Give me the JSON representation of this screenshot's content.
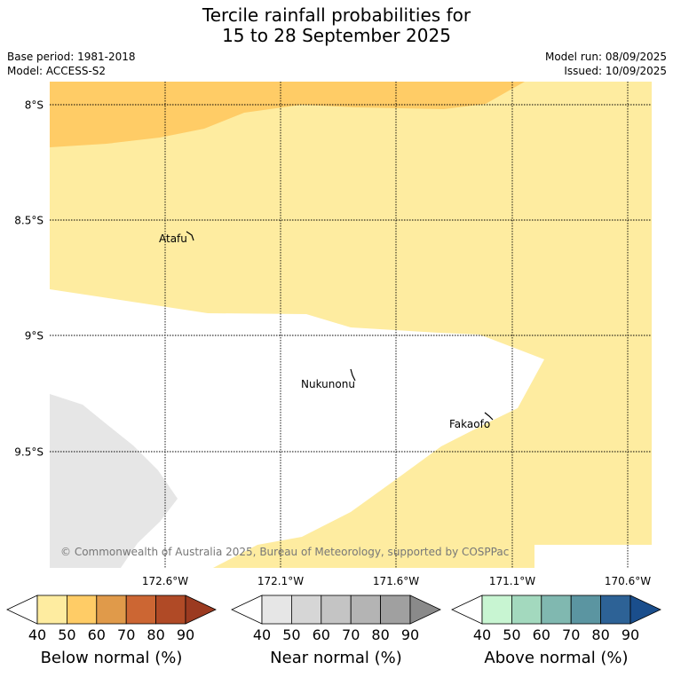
{
  "title": {
    "line1": "Tercile rainfall probabilities for",
    "line2": "15 to 28 September 2025"
  },
  "meta": {
    "base_period": "Base period: 1981-2018",
    "model": "Model: ACCESS-S2",
    "model_run": "Model run: 08/09/2025",
    "issued": "Issued: 10/09/2025"
  },
  "map": {
    "lat_labels": [
      "8°S",
      "8.5°S",
      "9°S",
      "9.5°S"
    ],
    "lon_labels": [
      "172.6°W",
      "172.1°W",
      "171.6°W",
      "171.1°W",
      "170.6°W"
    ],
    "places": [
      "Atafu",
      "Nukunonu",
      "Fakaofo"
    ],
    "copyright": "© Commonwealth of Australia 2025, Bureau of Meteorology, supported by COSPPac",
    "shading": [
      {
        "category": "Below normal",
        "range": "40-50",
        "color": "#feeca0"
      },
      {
        "category": "Below normal",
        "range": "50-60",
        "color": "#ffcc66"
      },
      {
        "category": "Near normal",
        "range": "40-50",
        "color": "#e6e6e6"
      }
    ]
  },
  "colorbars": [
    {
      "title": "Below normal (%)",
      "ticks": [
        "40",
        "50",
        "60",
        "70",
        "80",
        "90"
      ],
      "colors": [
        "#ffffff",
        "#feeca0",
        "#ffcc66",
        "#e09a4a",
        "#cc6633",
        "#b04a26",
        "#9b3a20"
      ]
    },
    {
      "title": "Near normal (%)",
      "ticks": [
        "40",
        "50",
        "60",
        "70",
        "80",
        "90"
      ],
      "colors": [
        "#ffffff",
        "#e6e6e6",
        "#d6d6d6",
        "#c4c4c4",
        "#b4b4b4",
        "#a0a0a0",
        "#8a8a8a"
      ]
    },
    {
      "title": "Above normal (%)",
      "ticks": [
        "40",
        "50",
        "60",
        "70",
        "80",
        "90"
      ],
      "colors": [
        "#ffffff",
        "#c8f5d2",
        "#a3d9be",
        "#80b8b0",
        "#5b95a1",
        "#2d6296",
        "#1a4e8c"
      ]
    }
  ]
}
